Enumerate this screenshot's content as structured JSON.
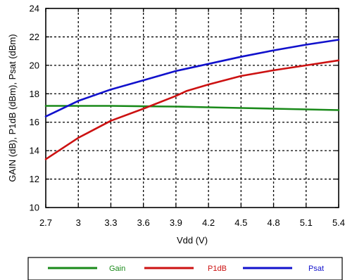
{
  "chart_data": {
    "type": "line",
    "xlabel": "Vdd (V)",
    "ylabel": "GAIN (dB), P1dB (dBm), Psat (dBm)",
    "xlim": [
      2.7,
      5.4
    ],
    "ylim": [
      10,
      24
    ],
    "x_ticks": [
      "2.7",
      "3",
      "3.3",
      "3.6",
      "3.9",
      "4.2",
      "4.5",
      "4.8",
      "5.1",
      "5.4"
    ],
    "y_ticks": [
      "10",
      "12",
      "14",
      "16",
      "18",
      "20",
      "22",
      "24"
    ],
    "grid": true,
    "legend_position": "bottom",
    "series": [
      {
        "name": "Gain",
        "color": "#1a8a1a",
        "x": [
          2.7,
          3.0,
          3.3,
          3.6,
          3.9,
          4.2,
          4.5,
          4.8,
          5.1,
          5.4
        ],
        "y": [
          17.15,
          17.15,
          17.15,
          17.12,
          17.1,
          17.05,
          17.0,
          16.95,
          16.9,
          16.85
        ]
      },
      {
        "name": "P1dB",
        "color": "#cc1111",
        "x": [
          2.7,
          3.0,
          3.3,
          3.6,
          3.9,
          4.0,
          4.2,
          4.5,
          4.8,
          5.1,
          5.4
        ],
        "y": [
          13.4,
          14.9,
          16.1,
          16.95,
          17.85,
          18.2,
          18.65,
          19.25,
          19.65,
          20.0,
          20.35
        ]
      },
      {
        "name": "Psat",
        "color": "#1111cc",
        "x": [
          2.7,
          3.0,
          3.3,
          3.6,
          3.9,
          4.2,
          4.5,
          4.8,
          5.1,
          5.4
        ],
        "y": [
          16.4,
          17.5,
          18.3,
          18.95,
          19.6,
          20.1,
          20.6,
          21.05,
          21.45,
          21.8
        ]
      }
    ]
  }
}
